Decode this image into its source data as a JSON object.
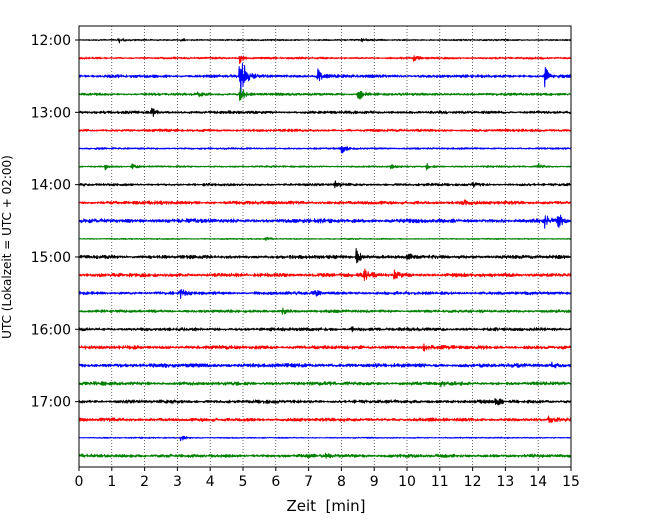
{
  "chart_data": {
    "type": "line",
    "chart_kind": "helicorder",
    "xlabel": "Zeit  [min]",
    "ylabel": "UTC (Lokalzeit = UTC + 02:00)",
    "xlim": [
      0,
      15
    ],
    "x_ticks": [
      "0",
      "1",
      "2",
      "3",
      "4",
      "5",
      "6",
      "7",
      "8",
      "9",
      "10",
      "11",
      "12",
      "13",
      "14",
      "15"
    ],
    "y_ticks": [
      "12:00",
      "13:00",
      "14:00",
      "15:00",
      "16:00",
      "17:00"
    ],
    "grid": "vertical dotted at each minute",
    "trace_interval_min": 15,
    "trace_colors": [
      "#000000",
      "#ff0000",
      "#0000ff",
      "#008000"
    ],
    "trace_count": 24,
    "traces": [
      {
        "start": "12:00",
        "color": "#000000",
        "noise": 0.6,
        "events": [
          {
            "x": 1.2,
            "amp": 3
          },
          {
            "x": 3.1,
            "amp": 2
          },
          {
            "x": 8.6,
            "amp": 2
          }
        ]
      },
      {
        "start": "12:15",
        "color": "#ff0000",
        "noise": 0.8,
        "events": [
          {
            "x": 4.9,
            "amp": 5
          },
          {
            "x": 10.2,
            "amp": 3
          }
        ]
      },
      {
        "start": "12:30",
        "color": "#0000ff",
        "noise": 1.2,
        "events": [
          {
            "x": 4.9,
            "amp": 32
          },
          {
            "x": 7.25,
            "amp": 9
          },
          {
            "x": 14.2,
            "amp": 10
          }
        ]
      },
      {
        "start": "12:45",
        "color": "#008000",
        "noise": 1.0,
        "events": [
          {
            "x": 4.9,
            "amp": 10
          },
          {
            "x": 8.5,
            "amp": 10
          },
          {
            "x": 3.6,
            "amp": 3
          }
        ]
      },
      {
        "start": "13:00",
        "color": "#000000",
        "noise": 1.1,
        "events": [
          {
            "x": 2.2,
            "amp": 6
          }
        ]
      },
      {
        "start": "13:15",
        "color": "#ff0000",
        "noise": 1.0,
        "events": []
      },
      {
        "start": "13:30",
        "color": "#0000ff",
        "noise": 0.7,
        "events": [
          {
            "x": 8.0,
            "amp": 5
          }
        ]
      },
      {
        "start": "13:45",
        "color": "#008000",
        "noise": 0.7,
        "events": [
          {
            "x": 0.8,
            "amp": 3
          },
          {
            "x": 1.6,
            "amp": 3
          },
          {
            "x": 9.5,
            "amp": 3
          },
          {
            "x": 10.6,
            "amp": 3
          },
          {
            "x": 14.0,
            "amp": 3
          }
        ]
      },
      {
        "start": "14:00",
        "color": "#000000",
        "noise": 1.0,
        "events": [
          {
            "x": 7.8,
            "amp": 4
          },
          {
            "x": 12.0,
            "amp": 3
          }
        ]
      },
      {
        "start": "14:15",
        "color": "#ff0000",
        "noise": 1.3,
        "events": [
          {
            "x": 11.7,
            "amp": 3
          }
        ]
      },
      {
        "start": "14:30",
        "color": "#0000ff",
        "noise": 1.6,
        "events": [
          {
            "x": 14.2,
            "amp": 6
          },
          {
            "x": 14.6,
            "amp": 8
          }
        ]
      },
      {
        "start": "14:45",
        "color": "#008000",
        "noise": 0.5,
        "events": [
          {
            "x": 5.7,
            "amp": 2
          }
        ]
      },
      {
        "start": "15:00",
        "color": "#000000",
        "noise": 1.4,
        "events": [
          {
            "x": 8.45,
            "amp": 8
          },
          {
            "x": 10.0,
            "amp": 4
          }
        ]
      },
      {
        "start": "15:15",
        "color": "#ff0000",
        "noise": 1.5,
        "events": [
          {
            "x": 8.7,
            "amp": 5
          },
          {
            "x": 9.6,
            "amp": 4
          }
        ]
      },
      {
        "start": "15:30",
        "color": "#0000ff",
        "noise": 1.2,
        "events": [
          {
            "x": 3.1,
            "amp": 5
          },
          {
            "x": 7.2,
            "amp": 3
          }
        ]
      },
      {
        "start": "15:45",
        "color": "#008000",
        "noise": 1.1,
        "events": [
          {
            "x": 6.2,
            "amp": 3
          }
        ]
      },
      {
        "start": "16:00",
        "color": "#000000",
        "noise": 1.3,
        "events": [
          {
            "x": 8.3,
            "amp": 3
          }
        ]
      },
      {
        "start": "16:15",
        "color": "#ff0000",
        "noise": 1.4,
        "events": [
          {
            "x": 10.5,
            "amp": 3
          }
        ]
      },
      {
        "start": "16:30",
        "color": "#0000ff",
        "noise": 1.5,
        "events": [
          {
            "x": 14.4,
            "amp": 3
          }
        ]
      },
      {
        "start": "16:45",
        "color": "#008000",
        "noise": 1.4,
        "events": [
          {
            "x": 11.0,
            "amp": 3
          }
        ]
      },
      {
        "start": "17:00",
        "color": "#000000",
        "noise": 1.3,
        "events": [
          {
            "x": 12.7,
            "amp": 5
          }
        ]
      },
      {
        "start": "17:15",
        "color": "#ff0000",
        "noise": 1.3,
        "events": [
          {
            "x": 14.3,
            "amp": 3
          }
        ]
      },
      {
        "start": "17:30",
        "color": "#0000ff",
        "noise": 0.5,
        "events": [
          {
            "x": 3.1,
            "amp": 3
          }
        ]
      },
      {
        "start": "17:45",
        "color": "#008000",
        "noise": 1.3,
        "events": [
          {
            "x": 7.5,
            "amp": 3
          }
        ]
      }
    ]
  }
}
